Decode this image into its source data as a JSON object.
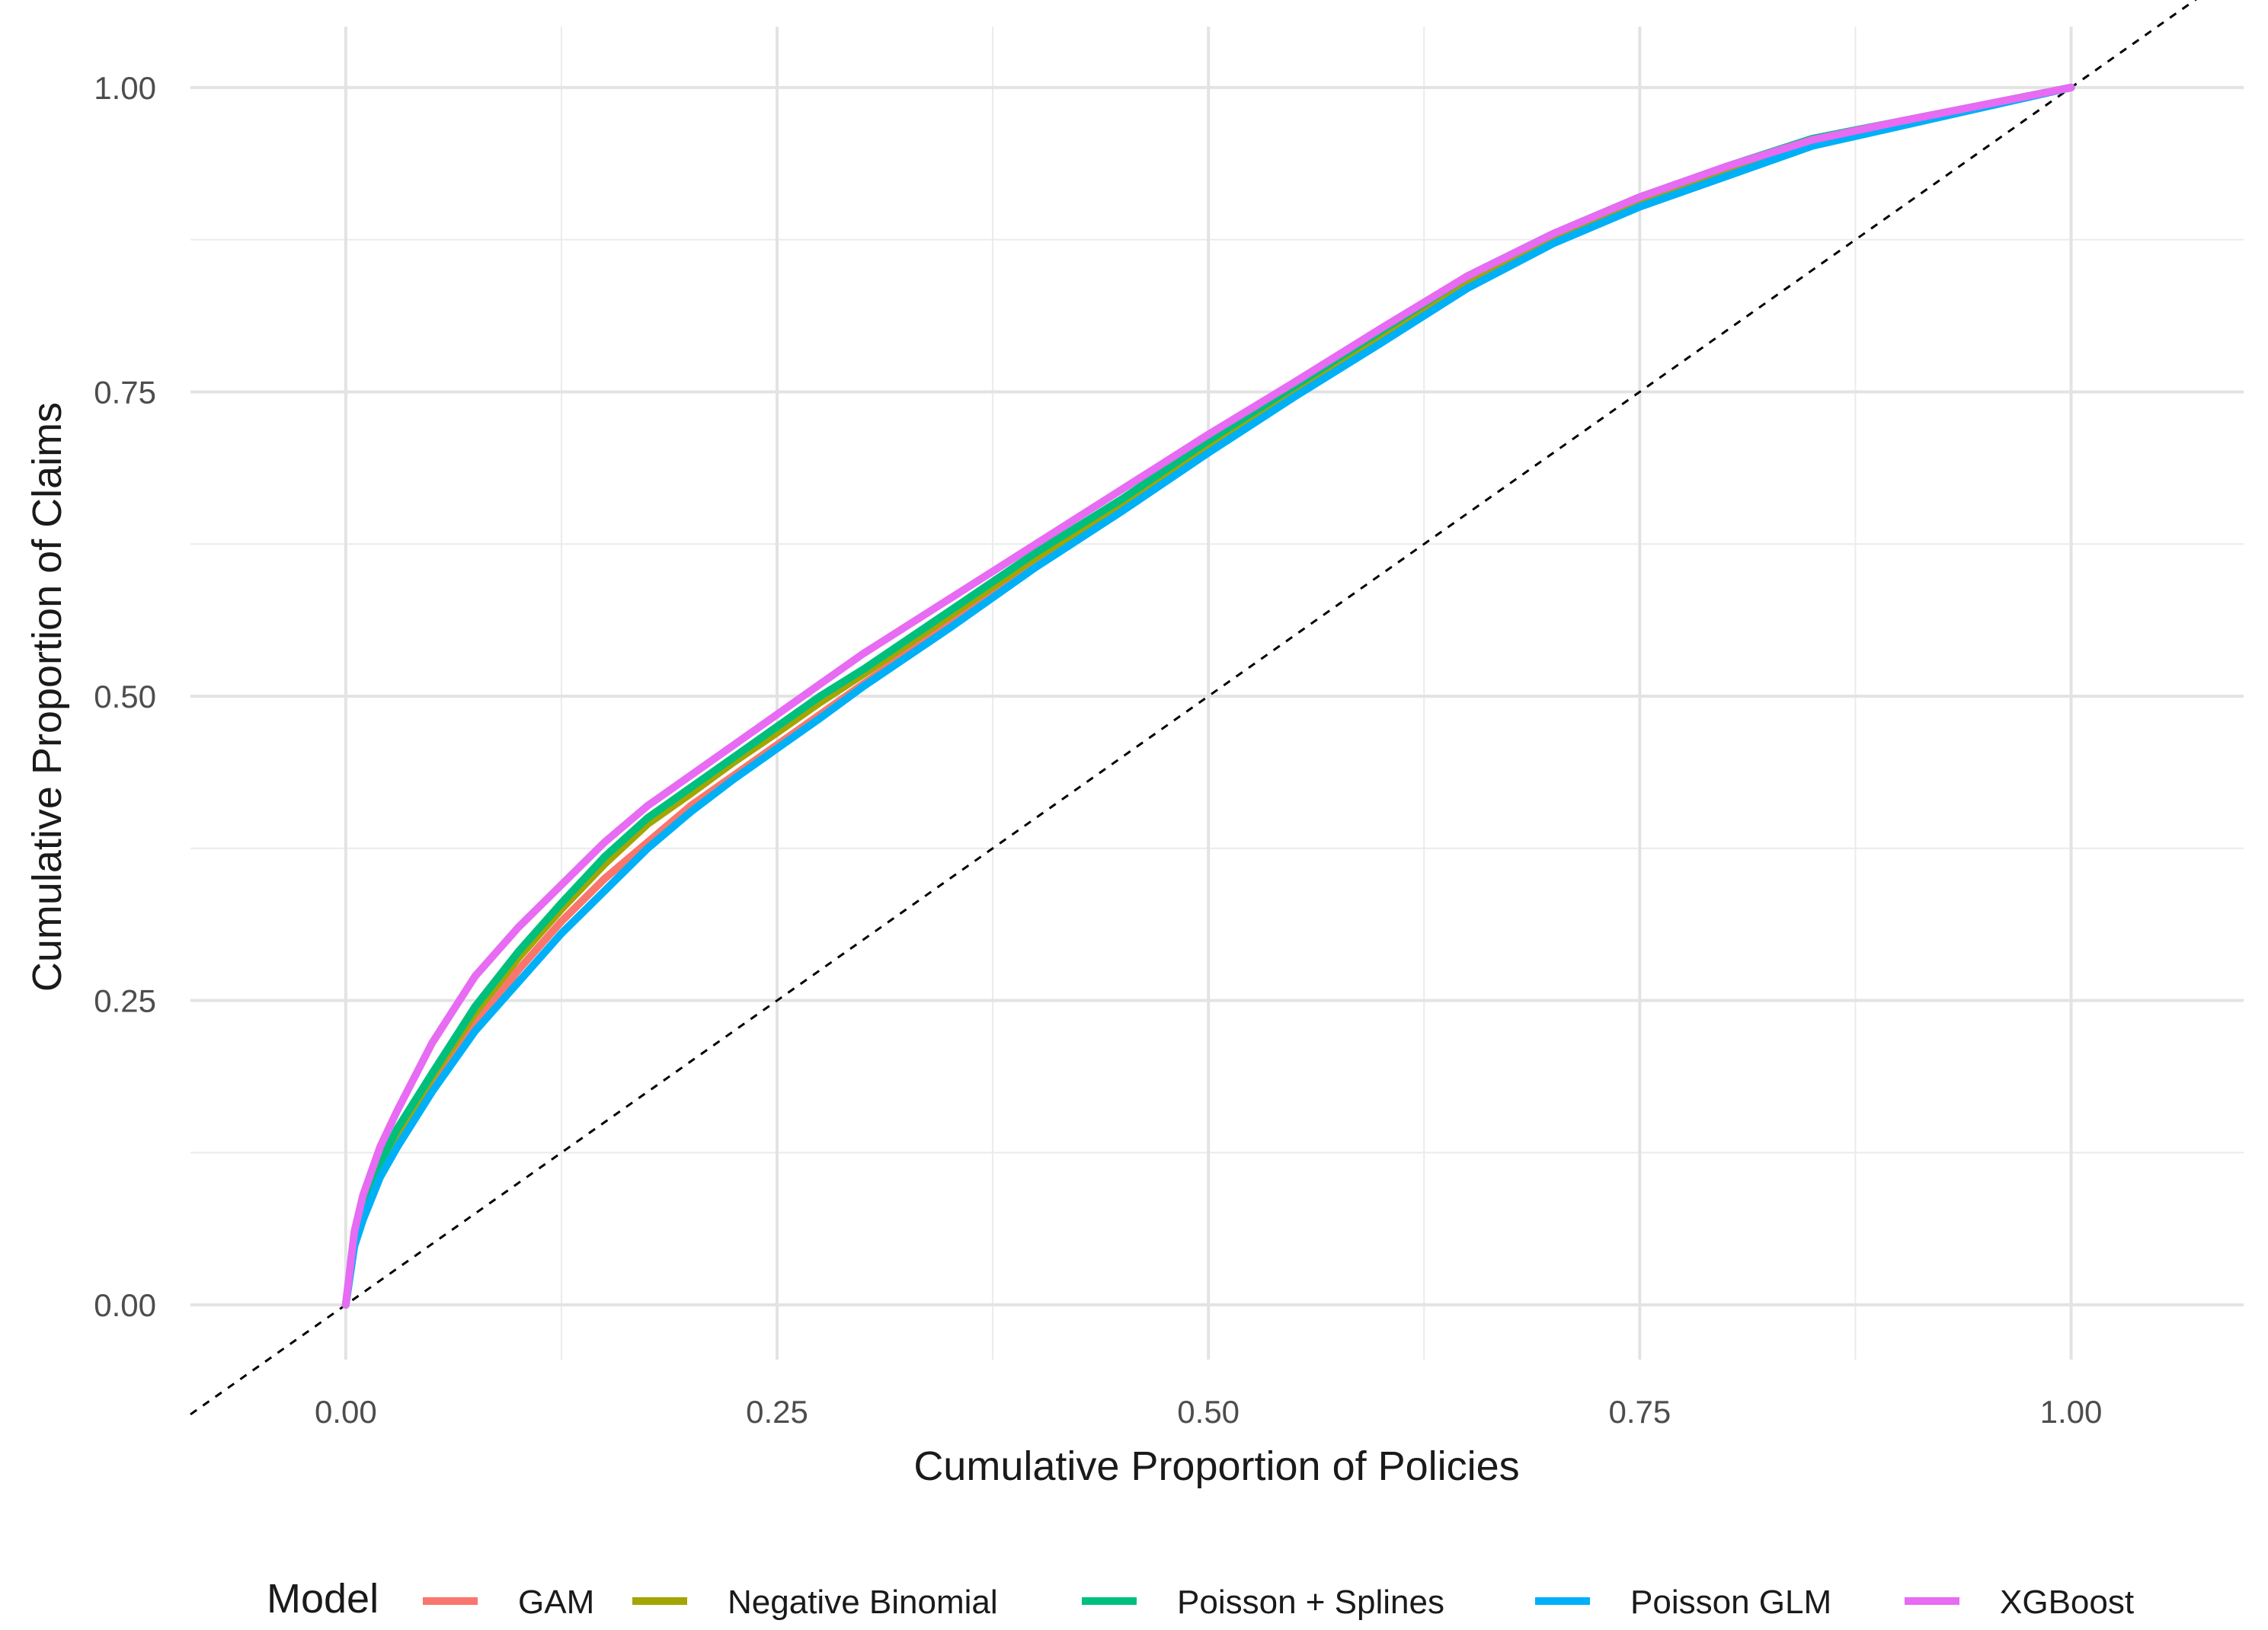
{
  "chart_data": {
    "type": "line",
    "title": "",
    "xlabel": "Cumulative Proportion of Policies",
    "ylabel": "Cumulative Proportion of Claims",
    "xlim": [
      -0.09,
      1.1
    ],
    "ylim": [
      -0.045,
      1.05
    ],
    "x_ticks": [
      0.0,
      0.25,
      0.5,
      0.75,
      1.0
    ],
    "x_tick_labels": [
      "0.00",
      "0.25",
      "0.50",
      "0.75",
      "1.00"
    ],
    "y_ticks": [
      0.0,
      0.25,
      0.5,
      0.75,
      1.0
    ],
    "y_tick_labels": [
      "0.00",
      "0.25",
      "0.50",
      "0.75",
      "1.00"
    ],
    "grid": true,
    "legend": {
      "title": "Model",
      "position": "bottom"
    },
    "reference_line": {
      "style": "dashed",
      "color": "#000000",
      "x": [
        -0.09,
        1.1
      ],
      "y": [
        -0.09,
        1.1
      ]
    },
    "series": [
      {
        "name": "GAM",
        "color": "#F8766D",
        "x": [
          0,
          0.005,
          0.01,
          0.02,
          0.03,
          0.05,
          0.075,
          0.1,
          0.125,
          0.15,
          0.175,
          0.2,
          0.225,
          0.25,
          0.275,
          0.3,
          0.35,
          0.4,
          0.45,
          0.5,
          0.55,
          0.6,
          0.65,
          0.7,
          0.75,
          0.8,
          0.85,
          0.9,
          0.95,
          1.0
        ],
        "y": [
          0,
          0.05,
          0.075,
          0.11,
          0.135,
          0.18,
          0.23,
          0.275,
          0.315,
          0.35,
          0.38,
          0.41,
          0.435,
          0.46,
          0.485,
          0.51,
          0.56,
          0.61,
          0.655,
          0.705,
          0.75,
          0.795,
          0.84,
          0.875,
          0.905,
          0.93,
          0.955,
          0.97,
          0.985,
          1.0
        ]
      },
      {
        "name": "Negative Binomial",
        "color": "#A3A500",
        "x": [
          0,
          0.005,
          0.01,
          0.02,
          0.03,
          0.05,
          0.075,
          0.1,
          0.125,
          0.15,
          0.175,
          0.2,
          0.225,
          0.25,
          0.275,
          0.3,
          0.35,
          0.4,
          0.45,
          0.5,
          0.55,
          0.6,
          0.65,
          0.7,
          0.75,
          0.8,
          0.85,
          0.9,
          0.95,
          1.0
        ],
        "y": [
          0,
          0.052,
          0.078,
          0.114,
          0.14,
          0.187,
          0.24,
          0.285,
          0.325,
          0.362,
          0.395,
          0.42,
          0.446,
          0.47,
          0.495,
          0.518,
          0.566,
          0.614,
          0.658,
          0.707,
          0.752,
          0.797,
          0.84,
          0.876,
          0.906,
          0.931,
          0.955,
          0.97,
          0.985,
          1.0
        ]
      },
      {
        "name": "Poisson + Splines",
        "color": "#00BF7D",
        "x": [
          0,
          0.005,
          0.01,
          0.02,
          0.03,
          0.05,
          0.075,
          0.1,
          0.125,
          0.15,
          0.175,
          0.2,
          0.225,
          0.25,
          0.275,
          0.3,
          0.35,
          0.4,
          0.45,
          0.5,
          0.55,
          0.6,
          0.65,
          0.7,
          0.75,
          0.8,
          0.85,
          0.9,
          0.95,
          1.0
        ],
        "y": [
          0,
          0.055,
          0.08,
          0.117,
          0.145,
          0.19,
          0.245,
          0.29,
          0.33,
          0.368,
          0.4,
          0.425,
          0.45,
          0.475,
          0.5,
          0.522,
          0.57,
          0.618,
          0.662,
          0.71,
          0.755,
          0.8,
          0.845,
          0.88,
          0.91,
          0.935,
          0.958,
          0.972,
          0.986,
          1.0
        ]
      },
      {
        "name": "Poisson GLM",
        "color": "#00B0F6",
        "x": [
          0,
          0.005,
          0.01,
          0.02,
          0.03,
          0.05,
          0.075,
          0.1,
          0.125,
          0.15,
          0.175,
          0.2,
          0.225,
          0.25,
          0.275,
          0.3,
          0.35,
          0.4,
          0.45,
          0.5,
          0.55,
          0.6,
          0.65,
          0.7,
          0.75,
          0.8,
          0.85,
          0.9,
          0.95,
          1.0
        ],
        "y": [
          0,
          0.048,
          0.07,
          0.105,
          0.13,
          0.175,
          0.225,
          0.265,
          0.305,
          0.34,
          0.375,
          0.405,
          0.432,
          0.457,
          0.482,
          0.508,
          0.556,
          0.606,
          0.652,
          0.7,
          0.746,
          0.79,
          0.835,
          0.872,
          0.902,
          0.927,
          0.952,
          0.968,
          0.984,
          1.0
        ]
      },
      {
        "name": "XGBoost",
        "color": "#E76BF3",
        "x": [
          0,
          0.005,
          0.01,
          0.02,
          0.03,
          0.05,
          0.075,
          0.1,
          0.125,
          0.15,
          0.175,
          0.2,
          0.225,
          0.25,
          0.275,
          0.3,
          0.35,
          0.4,
          0.45,
          0.5,
          0.55,
          0.6,
          0.65,
          0.7,
          0.75,
          0.8,
          0.85,
          0.9,
          0.95,
          1.0
        ],
        "y": [
          0,
          0.06,
          0.09,
          0.13,
          0.16,
          0.215,
          0.27,
          0.31,
          0.345,
          0.38,
          0.41,
          0.435,
          0.46,
          0.485,
          0.51,
          0.535,
          0.58,
          0.625,
          0.67,
          0.715,
          0.758,
          0.802,
          0.845,
          0.88,
          0.91,
          0.935,
          0.957,
          0.972,
          0.986,
          1.0
        ]
      }
    ]
  }
}
